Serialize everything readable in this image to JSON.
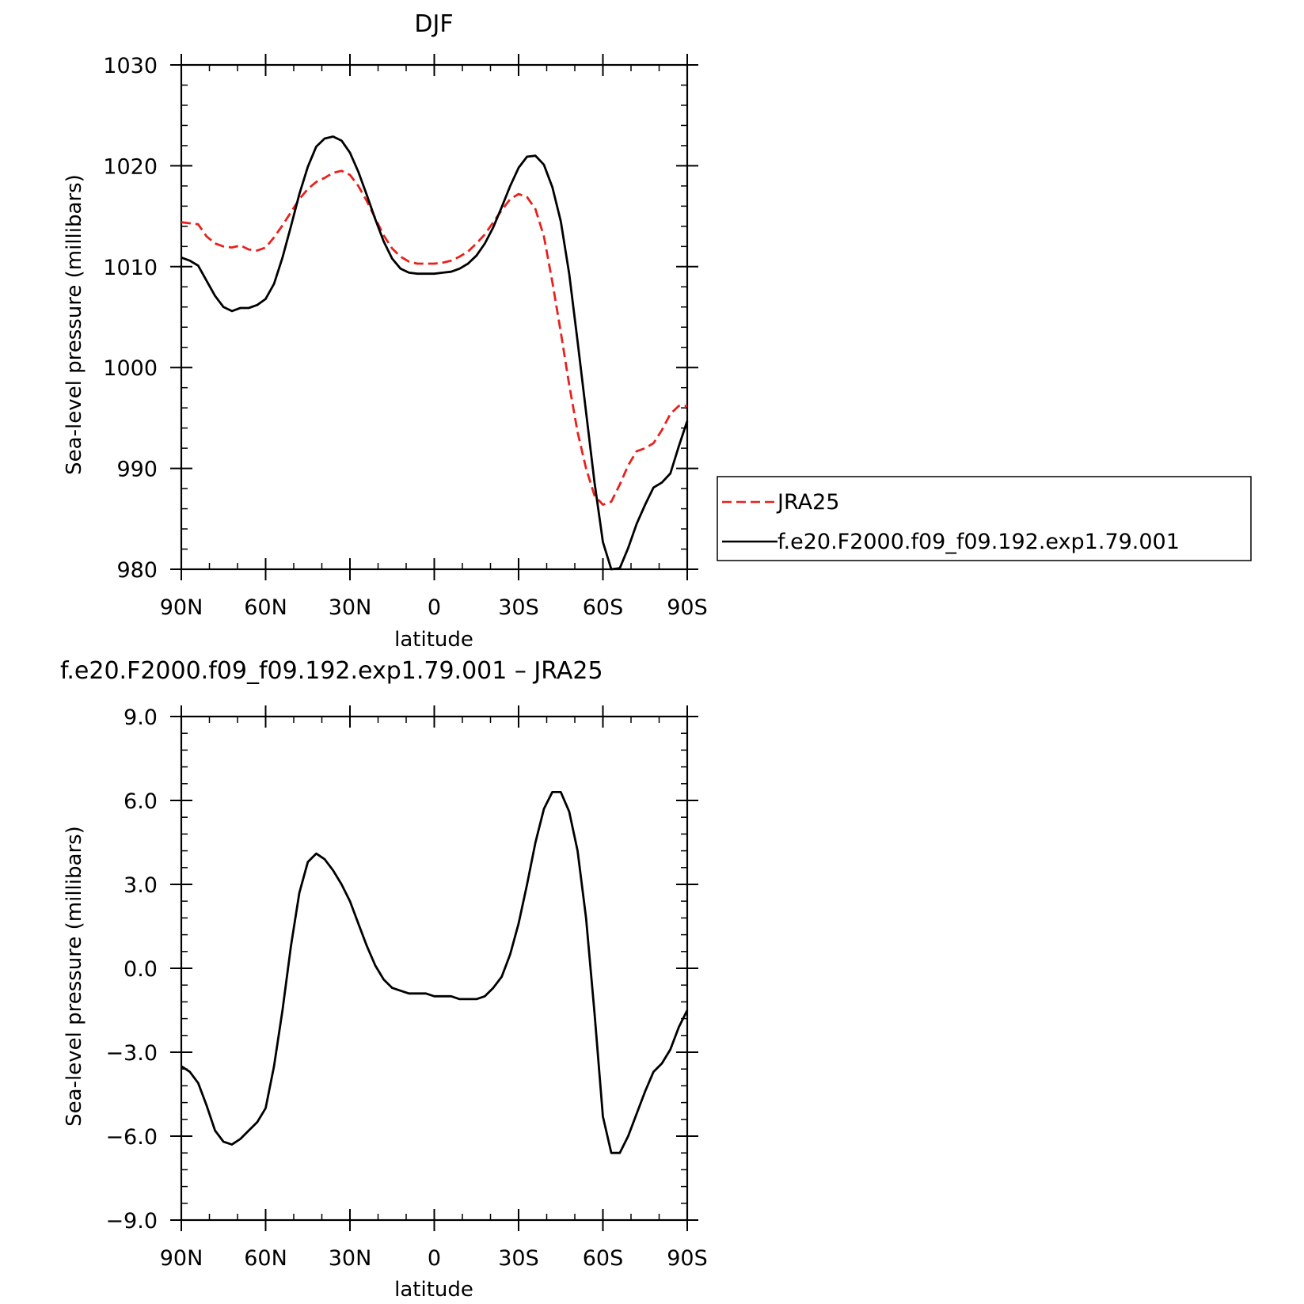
{
  "chart_data": [
    {
      "type": "line",
      "title": "DJF",
      "xlabel": "latitude",
      "ylabel": "Sea-level pressure (millibars)",
      "xlim": [
        90,
        -90
      ],
      "ylim": [
        980,
        1030
      ],
      "x_ticks": [
        90,
        60,
        30,
        0,
        -30,
        -60,
        -90
      ],
      "x_tick_labels": [
        "90N",
        "60N",
        "30N",
        "0",
        "30S",
        "60S",
        "90S"
      ],
      "y_ticks": [
        980,
        990,
        1000,
        1010,
        1020,
        1030
      ],
      "y_tick_labels": [
        "980",
        "990",
        "1000",
        "1010",
        "1020",
        "1030"
      ],
      "legend": "right",
      "series": [
        {
          "name": "JRA25",
          "color": "#e8211e",
          "style": "dashed",
          "x": [
            90,
            87,
            84,
            81,
            78,
            75,
            72,
            69,
            66,
            63,
            60,
            57,
            54,
            51,
            48,
            45,
            42,
            39,
            36,
            33,
            30,
            27,
            24,
            21,
            18,
            15,
            12,
            9,
            6,
            3,
            0,
            -3,
            -6,
            -9,
            -12,
            -15,
            -18,
            -21,
            -24,
            -27,
            -30,
            -33,
            -36,
            -39,
            -42,
            -45,
            -48,
            -51,
            -54,
            -57,
            -60,
            -63,
            -66,
            -69,
            -72,
            -75,
            -78,
            -81,
            -84,
            -87,
            -90
          ],
          "y": [
            1014.4,
            1014.3,
            1014.2,
            1013.0,
            1012.3,
            1012.0,
            1011.9,
            1012.1,
            1011.7,
            1011.6,
            1011.9,
            1012.9,
            1014.1,
            1015.4,
            1016.7,
            1017.7,
            1018.4,
            1018.8,
            1019.3,
            1019.5,
            1019.1,
            1018.0,
            1016.5,
            1014.8,
            1013.1,
            1011.8,
            1011.0,
            1010.5,
            1010.3,
            1010.3,
            1010.3,
            1010.4,
            1010.6,
            1011.0,
            1011.5,
            1012.3,
            1013.2,
            1014.4,
            1015.6,
            1016.7,
            1017.2,
            1016.9,
            1015.7,
            1013.0,
            1008.5,
            1003.5,
            998.3,
            993.6,
            990.0,
            987.3,
            986.4,
            986.7,
            988.4,
            990.3,
            991.7,
            992.0,
            992.5,
            993.8,
            995.4,
            996.2,
            996.2
          ]
        },
        {
          "name": "f.e20.F2000.f09_f09.192.exp1.79.001",
          "color": "#000000",
          "style": "solid",
          "x": [
            90,
            87,
            84,
            81,
            78,
            75,
            72,
            69,
            66,
            63,
            60,
            57,
            54,
            51,
            48,
            45,
            42,
            39,
            36,
            33,
            30,
            27,
            24,
            21,
            18,
            15,
            12,
            9,
            6,
            3,
            0,
            -3,
            -6,
            -9,
            -12,
            -15,
            -18,
            -21,
            -24,
            -27,
            -30,
            -33,
            -36,
            -39,
            -42,
            -45,
            -48,
            -51,
            -54,
            -57,
            -60,
            -63,
            -66,
            -69,
            -72,
            -75,
            -78,
            -81,
            -84,
            -87,
            -90
          ],
          "y": [
            1010.9,
            1010.6,
            1010.1,
            1008.6,
            1007.1,
            1006.0,
            1005.6,
            1005.9,
            1005.9,
            1006.2,
            1006.8,
            1008.3,
            1010.9,
            1014.0,
            1017.2,
            1019.9,
            1021.9,
            1022.7,
            1022.9,
            1022.5,
            1021.3,
            1019.4,
            1017.1,
            1014.7,
            1012.5,
            1010.8,
            1009.8,
            1009.4,
            1009.3,
            1009.3,
            1009.3,
            1009.4,
            1009.5,
            1009.8,
            1010.3,
            1011.1,
            1012.3,
            1013.9,
            1015.9,
            1018.0,
            1019.8,
            1020.9,
            1021.0,
            1020.1,
            1017.9,
            1014.5,
            1009.3,
            1002.6,
            995.6,
            988.6,
            982.7,
            980.0,
            980.1,
            982.1,
            984.5,
            986.4,
            988.1,
            988.6,
            989.5,
            992.2,
            994.7
          ]
        }
      ]
    },
    {
      "type": "line",
      "title": "f.e20.F2000.f09_f09.192.exp1.79.001 – JRA25",
      "xlabel": "latitude",
      "ylabel": "Sea-level pressure (millibars)",
      "xlim": [
        90,
        -90
      ],
      "ylim": [
        -9,
        9
      ],
      "x_ticks": [
        90,
        60,
        30,
        0,
        -30,
        -60,
        -90
      ],
      "x_tick_labels": [
        "90N",
        "60N",
        "30N",
        "0",
        "30S",
        "60S",
        "90S"
      ],
      "y_ticks": [
        -9,
        -6,
        -3,
        0,
        3,
        6,
        9
      ],
      "y_tick_labels": [
        "−9.0",
        "−6.0",
        "−3.0",
        "0.0",
        "3.0",
        "6.0",
        "9.0"
      ],
      "series": [
        {
          "color": "#000000",
          "style": "solid",
          "x": [
            90,
            87,
            84,
            81,
            78,
            75,
            72,
            69,
            66,
            63,
            60,
            57,
            54,
            51,
            48,
            45,
            42,
            39,
            36,
            33,
            30,
            27,
            24,
            21,
            18,
            15,
            12,
            9,
            6,
            3,
            0,
            -3,
            -6,
            -9,
            -12,
            -15,
            -18,
            -21,
            -24,
            -27,
            -30,
            -33,
            -36,
            -39,
            -42,
            -45,
            -48,
            -51,
            -54,
            -57,
            -60,
            -63,
            -66,
            -69,
            -72,
            -75,
            -78,
            -81,
            -84,
            -87,
            -90
          ],
          "y": [
            -3.5,
            -3.7,
            -4.1,
            -4.9,
            -5.8,
            -6.2,
            -6.3,
            -6.1,
            -5.8,
            -5.5,
            -5.0,
            -3.5,
            -1.5,
            0.8,
            2.7,
            3.8,
            4.1,
            3.9,
            3.5,
            3.0,
            2.4,
            1.6,
            0.8,
            0.1,
            -0.4,
            -0.7,
            -0.8,
            -0.9,
            -0.9,
            -0.9,
            -1.0,
            -1.0,
            -1.0,
            -1.1,
            -1.1,
            -1.1,
            -1.0,
            -0.7,
            -0.3,
            0.5,
            1.6,
            3.0,
            4.5,
            5.7,
            6.3,
            6.3,
            5.6,
            4.2,
            1.8,
            -1.6,
            -5.3,
            -6.6,
            -6.6,
            -6.0,
            -5.2,
            -4.4,
            -3.7,
            -3.4,
            -2.9,
            -2.1,
            -1.5
          ]
        }
      ]
    }
  ]
}
